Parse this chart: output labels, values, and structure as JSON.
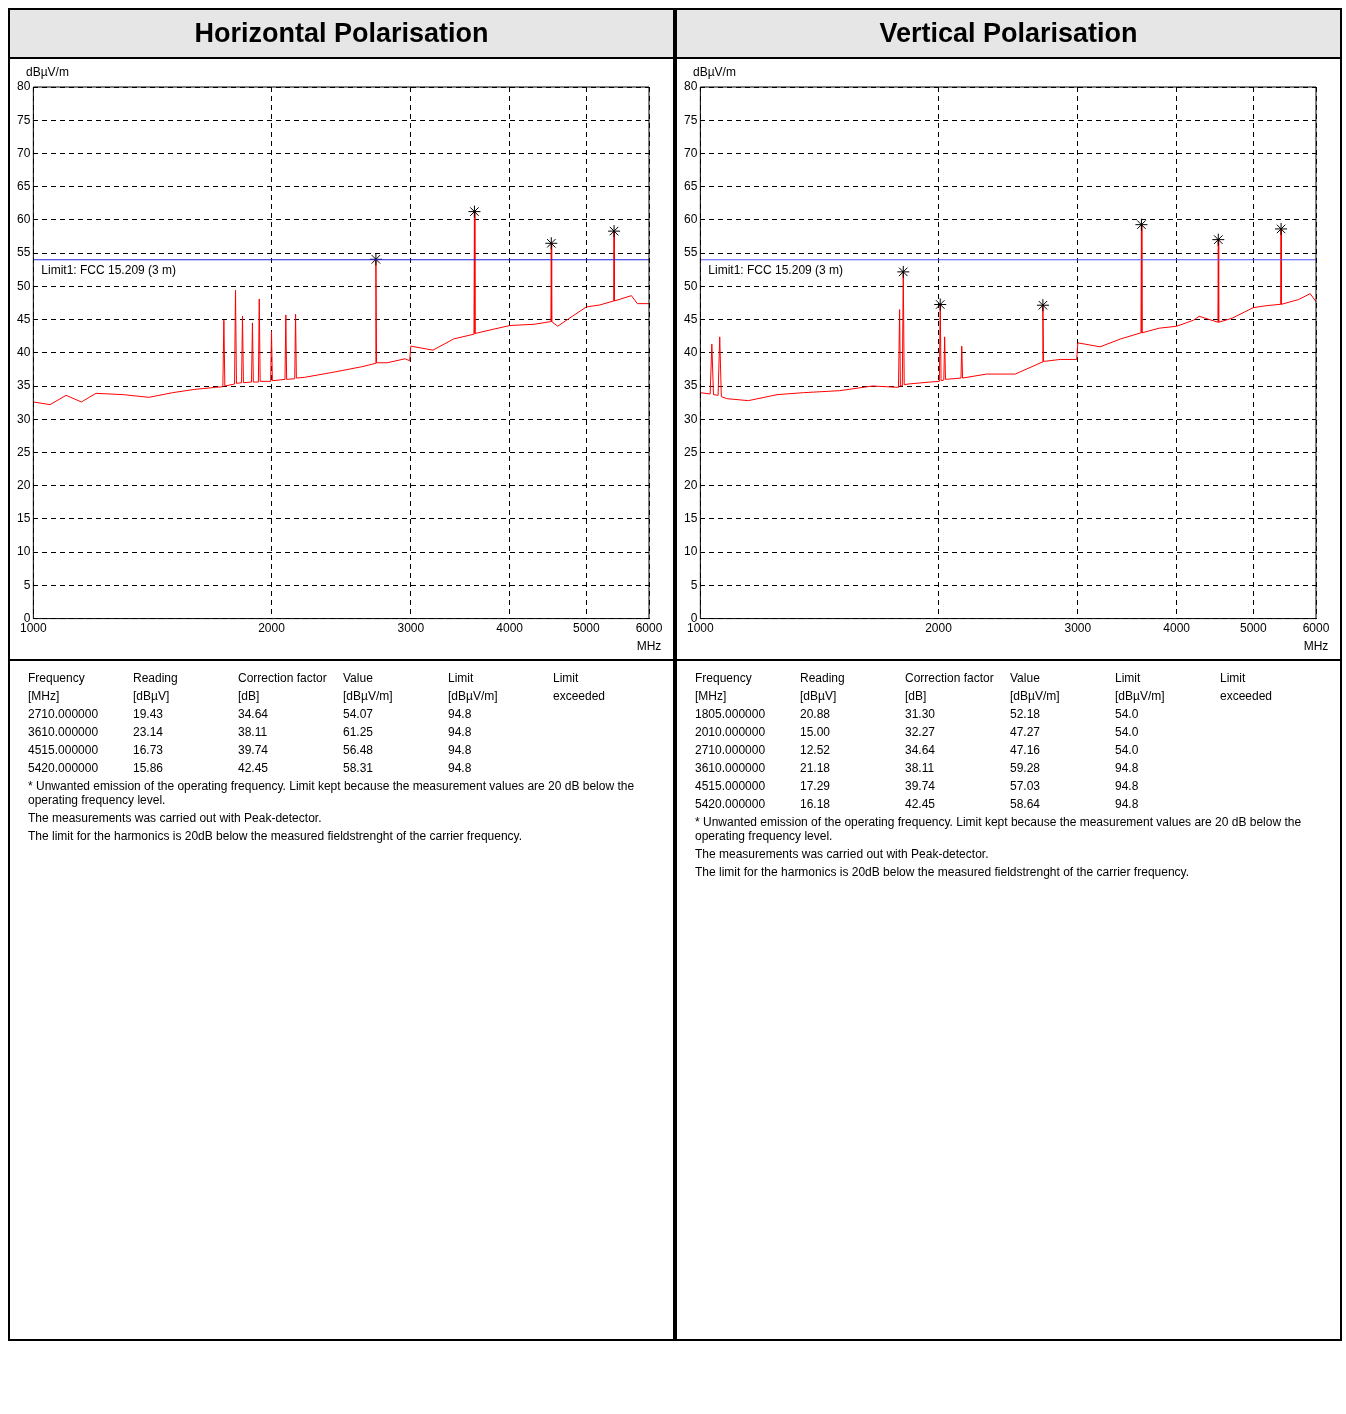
{
  "chart_data": [
    {
      "type": "line",
      "title": "Horizontal Polarisation",
      "ylabel": "dBµV/m",
      "xlabel": "MHz",
      "log": "x",
      "grid": true,
      "legend": false,
      "xlim": [
        1000,
        6000
      ],
      "xticks": [
        1000,
        2000,
        3000,
        4000,
        5000,
        6000
      ],
      "ylim": [
        0,
        80
      ],
      "yticks": [
        0,
        5,
        10,
        15,
        20,
        25,
        30,
        35,
        40,
        45,
        50,
        55,
        60,
        65,
        70,
        75,
        80
      ],
      "ref_lines": [
        {
          "axis": "y",
          "value": 54,
          "label": "Limit1: FCC 15.209 (3 m)",
          "color": "#2020e0"
        }
      ],
      "series": [
        {
          "type": "line",
          "color": "#ff0000",
          "marker": "none",
          "x": [
            1000,
            1050,
            1100,
            1150,
            1200,
            1300,
            1400,
            1500,
            1600,
            1700,
            1736,
            1741,
            1746,
            1796,
            1801,
            1806,
            1833,
            1838,
            1843,
            1887,
            1892,
            1897,
            1925,
            1930,
            1935,
            1995,
            2000,
            2005,
            2080,
            2085,
            2090,
            2140,
            2145,
            2150,
            2200,
            2400,
            2600,
            2705,
            2710,
            2715,
            2800,
            2950,
            2990,
            3000,
            3200,
            3400,
            3605,
            3610,
            3615,
            3800,
            4000,
            4300,
            4510,
            4515,
            4520,
            4600,
            4800,
            5000,
            5200,
            5415,
            5420,
            5425,
            5700,
            5800,
            6000
          ],
          "values": [
            32.6,
            32.2,
            33.6,
            32.6,
            33.9,
            33.7,
            33.3,
            34.0,
            34.5,
            34.8,
            34.9,
            44.9,
            35.0,
            35.3,
            49.4,
            35.4,
            35.5,
            45.5,
            35.5,
            35.6,
            44.5,
            35.6,
            35.6,
            48.1,
            35.7,
            35.7,
            43.2,
            35.8,
            36.0,
            45.7,
            36.0,
            36.1,
            45.8,
            36.2,
            36.3,
            37.1,
            37.9,
            38.4,
            54.07,
            38.5,
            38.5,
            39.1,
            38.8,
            41.0,
            40.4,
            42.1,
            42.8,
            61.25,
            42.9,
            43.5,
            44.1,
            44.3,
            44.7,
            56.48,
            44.7,
            44.0,
            45.5,
            46.9,
            47.2,
            47.8,
            58.31,
            47.8,
            48.6,
            47.4,
            47.4
          ]
        },
        {
          "type": "scatter",
          "color": "#000000",
          "marker": "cross",
          "x": [
            2710,
            3610,
            4515,
            5420
          ],
          "values": [
            54.07,
            61.25,
            56.48,
            58.31
          ]
        }
      ],
      "annotations": [
        "Frequency\tReading\tCorrection factor\tValue\tLimit\tLimit",
        "[MHz]\t[dBµV]\t[dB]\t[dBµV/m]\t[dBµV/m]\texceeded",
        "2710.000000\t19.43\t34.64\t54.07\t94.8",
        "3610.000000\t23.14\t38.11\t61.25\t94.8",
        "4515.000000\t16.73\t39.74\t56.48\t94.8",
        "5420.000000\t15.86\t42.45\t58.31\t94.8",
        "* Unwanted emission of the operating frequency. Limit kept because the measurement values are 20 dB below the operating frequency level.",
        "The measurements was carried out with Peak-detector.",
        "The limit for the harmonics is 20dB below the measured fieldstrenght of the carrier frequency."
      ]
    },
    {
      "type": "line",
      "title": "Vertical Polarisation",
      "ylabel": "dBµV/m",
      "xlabel": "MHz",
      "log": "x",
      "grid": true,
      "legend": false,
      "xlim": [
        1000,
        6000
      ],
      "xticks": [
        1000,
        2000,
        3000,
        4000,
        5000,
        6000
      ],
      "ylim": [
        0,
        80
      ],
      "yticks": [
        0,
        5,
        10,
        15,
        20,
        25,
        30,
        35,
        40,
        45,
        50,
        55,
        60,
        65,
        70,
        75,
        80
      ],
      "ref_lines": [
        {
          "axis": "y",
          "value": 54,
          "label": "Limit1: FCC 15.209 (3 m)",
          "color": "#5050ff"
        }
      ],
      "series": [
        {
          "type": "line",
          "color": "#ff0000",
          "marker": "none",
          "x": [
            1000,
            1029,
            1034,
            1039,
            1053,
            1058,
            1063,
            1080,
            1150,
            1250,
            1350,
            1500,
            1650,
            1780,
            1786,
            1790,
            1800,
            1805,
            1810,
            1830,
            1950,
            2005,
            2010,
            2015,
            2031,
            2036,
            2041,
            2135,
            2140,
            2145,
            2300,
            2500,
            2705,
            2710,
            2715,
            2850,
            2990,
            3000,
            3200,
            3400,
            3605,
            3610,
            3615,
            3800,
            4000,
            4200,
            4270,
            4510,
            4515,
            4520,
            4700,
            5000,
            5200,
            5415,
            5420,
            5425,
            5700,
            5900,
            6000
          ],
          "values": [
            34.0,
            33.8,
            41.3,
            33.7,
            33.6,
            42.4,
            33.4,
            33.1,
            32.8,
            33.7,
            34.0,
            34.3,
            35.0,
            34.8,
            46.5,
            35.0,
            35.0,
            52.18,
            35.2,
            35.3,
            35.6,
            35.7,
            47.27,
            35.8,
            35.9,
            42.4,
            36.0,
            36.2,
            41.0,
            36.2,
            36.8,
            36.8,
            38.6,
            47.16,
            38.7,
            39.0,
            39.0,
            41.5,
            40.9,
            42.1,
            43.0,
            59.28,
            43.0,
            43.7,
            44.0,
            44.9,
            45.5,
            44.6,
            57.03,
            44.6,
            45.2,
            46.8,
            47.1,
            47.3,
            58.64,
            47.3,
            48.0,
            48.9,
            47.7
          ]
        },
        {
          "type": "scatter",
          "color": "#000000",
          "marker": "cross",
          "x": [
            1805,
            2010,
            2710,
            3610,
            4515,
            5420
          ],
          "values": [
            52.18,
            47.27,
            47.16,
            59.28,
            57.03,
            58.64
          ]
        }
      ],
      "annotations": [
        "Frequency\tReading\tCorrection factor\tValue\tLimit\tLimit",
        "[MHz]\t[dBµV]\t[dB]\t[dBµV/m]\t[dBµV/m]\texceeded",
        "1805.000000\t20.88\t31.30\t52.18\t54.0",
        "2010.000000\t15.00\t32.27\t47.27\t54.0",
        "2710.000000\t12.52\t34.64\t47.16\t54.0",
        "3610.000000\t21.18\t38.11\t59.28\t94.8",
        "4515.000000\t17.29\t39.74\t57.03\t94.8",
        "5420.000000\t16.18\t42.45\t58.64\t94.8",
        "* Unwanted emission of the operating frequency. Limit kept because the measurement values are 20 dB below the operating frequency level.",
        "The measurements was carried out with Peak-detector.",
        "The limit for the harmonics is 20dB below the measured fieldstrenght of the carrier frequency."
      ]
    }
  ]
}
